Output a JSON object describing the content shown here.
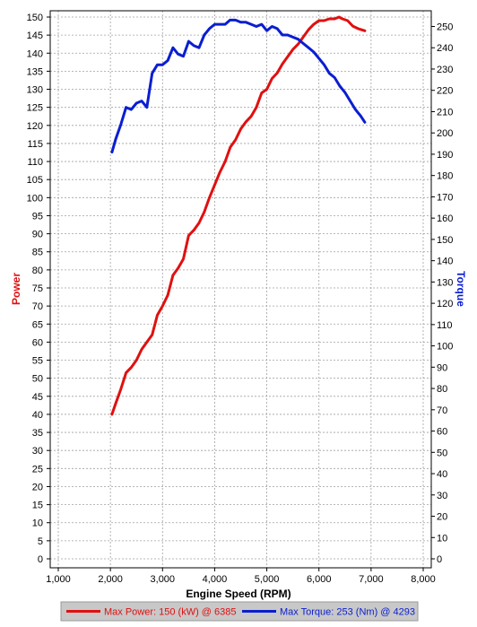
{
  "colors": {
    "power": "#e01010",
    "torque": "#0a1ed0",
    "grid": "#a0a0a0",
    "legend_bg": "#c8c8c8"
  },
  "chart_data": {
    "type": "line",
    "title": "",
    "xlabel": "Engine Speed (RPM)",
    "ylabel_left": "Power",
    "ylabel_right": "Torque",
    "xlim": [
      1000,
      8000
    ],
    "xticks": [
      "1,000",
      "2,000",
      "3,000",
      "4,000",
      "5,000",
      "6,000",
      "7,000",
      "8,000"
    ],
    "xtick_values": [
      1000,
      2000,
      3000,
      4000,
      5000,
      6000,
      7000,
      8000
    ],
    "ylim_left": [
      0,
      150
    ],
    "ylim_right": [
      0,
      255
    ],
    "yticks_left": [
      0,
      5,
      10,
      15,
      20,
      25,
      30,
      35,
      40,
      45,
      50,
      55,
      60,
      65,
      70,
      75,
      80,
      85,
      90,
      95,
      100,
      105,
      110,
      115,
      120,
      125,
      130,
      135,
      140,
      145,
      150
    ],
    "yticks_right": [
      0,
      10,
      20,
      30,
      40,
      50,
      60,
      70,
      80,
      90,
      100,
      110,
      120,
      130,
      140,
      150,
      160,
      170,
      180,
      190,
      200,
      210,
      220,
      230,
      240,
      250
    ],
    "grid": true,
    "legend_position": "bottom",
    "series": [
      {
        "name": "Power",
        "axis": "left",
        "color": "#e01010",
        "x": [
          2030,
          2100,
          2200,
          2300,
          2400,
          2500,
          2600,
          2700,
          2800,
          2900,
          3000,
          3100,
          3200,
          3300,
          3400,
          3500,
          3600,
          3700,
          3800,
          3900,
          4000,
          4100,
          4200,
          4300,
          4400,
          4500,
          4600,
          4700,
          4800,
          4900,
          5000,
          5100,
          5200,
          5300,
          5400,
          5500,
          5600,
          5700,
          5800,
          5900,
          6000,
          6100,
          6200,
          6300,
          6385,
          6450,
          6550,
          6650,
          6750,
          6880
        ],
        "y": [
          40,
          43,
          47,
          51.5,
          53,
          55,
          58,
          60,
          62,
          67.5,
          70,
          73,
          78.5,
          80.5,
          83,
          89.5,
          91,
          93,
          96,
          100,
          103.5,
          107,
          110,
          114,
          116,
          119,
          121,
          122.5,
          125,
          129,
          130,
          133,
          134.5,
          137,
          139,
          141,
          142.5,
          144.5,
          146.5,
          148,
          149,
          149,
          149.5,
          149.5,
          150,
          149.5,
          149,
          147.5,
          146.8,
          146.2
        ]
      },
      {
        "name": "Torque",
        "axis": "right",
        "color": "#0a1ed0",
        "x": [
          2030,
          2100,
          2200,
          2300,
          2400,
          2500,
          2600,
          2700,
          2800,
          2900,
          3000,
          3100,
          3200,
          3300,
          3400,
          3500,
          3600,
          3700,
          3800,
          3900,
          4000,
          4100,
          4200,
          4293,
          4400,
          4500,
          4600,
          4700,
          4800,
          4900,
          5000,
          5100,
          5200,
          5300,
          5400,
          5500,
          5600,
          5700,
          5800,
          5900,
          6000,
          6100,
          6200,
          6300,
          6400,
          6500,
          6600,
          6700,
          6800,
          6880
        ],
        "y": [
          191,
          197,
          204,
          212,
          211,
          214,
          215,
          212,
          228,
          232,
          232,
          234,
          240,
          237,
          236,
          243,
          241,
          240,
          246,
          249,
          251,
          251,
          251,
          253,
          253,
          252,
          252,
          251,
          250,
          251,
          248,
          250,
          249,
          246,
          246,
          245,
          244,
          242,
          240,
          238,
          235,
          232,
          228,
          226,
          222,
          219,
          215,
          211,
          208,
          205
        ]
      }
    ],
    "legend": [
      {
        "label": "Max Power: 150 (kW) @ 6385",
        "color": "#e01010"
      },
      {
        "label": "Max Torque: 253 (Nm) @ 4293",
        "color": "#0a1ed0"
      }
    ]
  }
}
